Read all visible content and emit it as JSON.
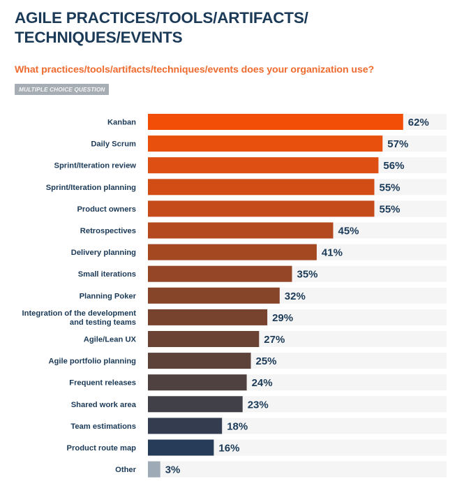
{
  "header": {
    "title_line1": "AGILE PRACTICES/TOOLS/ARTIFACTS/",
    "title_line2": "TECHNIQUES/EVENTS",
    "question": "What practices/tools/artifacts/techniques/events does your organization use?",
    "badge": "MULTIPLE CHOICE QUESTION"
  },
  "chart_data": {
    "type": "bar",
    "orientation": "horizontal",
    "title": "AGILE PRACTICES/TOOLS/ARTIFACTS/TECHNIQUES/EVENTS",
    "subtitle": "What practices/tools/artifacts/techniques/events does your organization use?",
    "xlabel": "",
    "ylabel": "",
    "unit": "%",
    "xlim": [
      0,
      75
    ],
    "grid": false,
    "legend": "none",
    "categories": [
      [
        "Kanban"
      ],
      [
        "Daily Scrum"
      ],
      [
        "Sprint/Iteration review"
      ],
      [
        "Sprint/Iteration planning"
      ],
      [
        "Product owners"
      ],
      [
        "Retrospectives"
      ],
      [
        "Delivery planning"
      ],
      [
        "Small iterations"
      ],
      [
        "Planning Poker"
      ],
      [
        "Integration of the development",
        "and testing teams"
      ],
      [
        "Agile/Lean UX"
      ],
      [
        "Agile portfolio planning"
      ],
      [
        "Frequent releases"
      ],
      [
        "Shared work area"
      ],
      [
        "Team estimations"
      ],
      [
        "Product route map"
      ],
      [
        "Other"
      ]
    ],
    "values": [
      62,
      57,
      56,
      55,
      55,
      45,
      41,
      35,
      32,
      29,
      27,
      25,
      24,
      23,
      18,
      16,
      3
    ],
    "value_labels": [
      "62%",
      "57%",
      "56%",
      "55%",
      "55%",
      "45%",
      "41%",
      "35%",
      "32%",
      "29%",
      "27%",
      "25%",
      "24%",
      "23%",
      "18%",
      "16%",
      "3%"
    ],
    "colors": [
      "#f24e07",
      "#e8500d",
      "#dd4f12",
      "#d24d16",
      "#c54b1a",
      "#b4491f",
      "#a44822",
      "#944626",
      "#864429",
      "#78432e",
      "#6a4334",
      "#5c4239",
      "#4f4140",
      "#413f47",
      "#343d4f",
      "#263c58",
      "#9eabb6"
    ],
    "track_color": "#f5f5f6"
  }
}
